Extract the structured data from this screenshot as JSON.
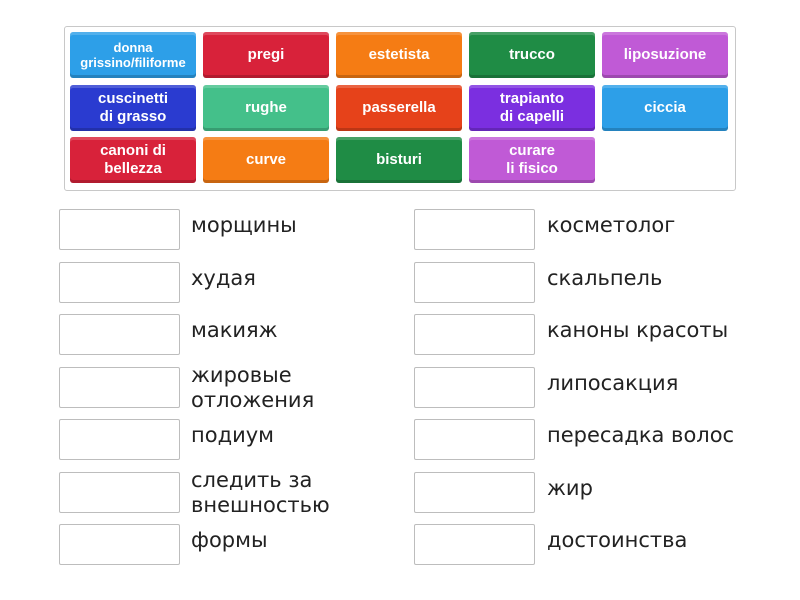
{
  "tiles": [
    {
      "label": "donna grissino/filiforme",
      "color": "#2d9fe8"
    },
    {
      "label": "pregi",
      "color": "#d8223a"
    },
    {
      "label": "estetista",
      "color": "#f57c14"
    },
    {
      "label": "trucco",
      "color": "#1f8c45"
    },
    {
      "label": "liposuzione",
      "color": "#c05ad6"
    },
    {
      "label": "cuscinetti di grasso",
      "color": "#2a3bd0"
    },
    {
      "label": "rughe",
      "color": "#44c08a"
    },
    {
      "label": "passerella",
      "color": "#e6421a"
    },
    {
      "label": "trapianto di capelli",
      "color": "#7b2fe0"
    },
    {
      "label": "ciccia",
      "color": "#2d9fe8"
    },
    {
      "label": "canoni di bellezza",
      "color": "#d8223a"
    },
    {
      "label": "curve",
      "color": "#f57c14"
    },
    {
      "label": "bisturi",
      "color": "#1f8c45"
    },
    {
      "label": "curare li fisico",
      "color": "#c05ad6"
    }
  ],
  "targets_left": [
    "морщины",
    "худая",
    "макияж",
    "жировые\nотложения",
    "подиум",
    "следить за\nвнешностью",
    "формы"
  ],
  "targets_right": [
    "косметолог",
    "скальпель",
    "каноны красоты",
    "липосакция",
    "пересадка волос",
    "жир",
    "достоинства"
  ]
}
